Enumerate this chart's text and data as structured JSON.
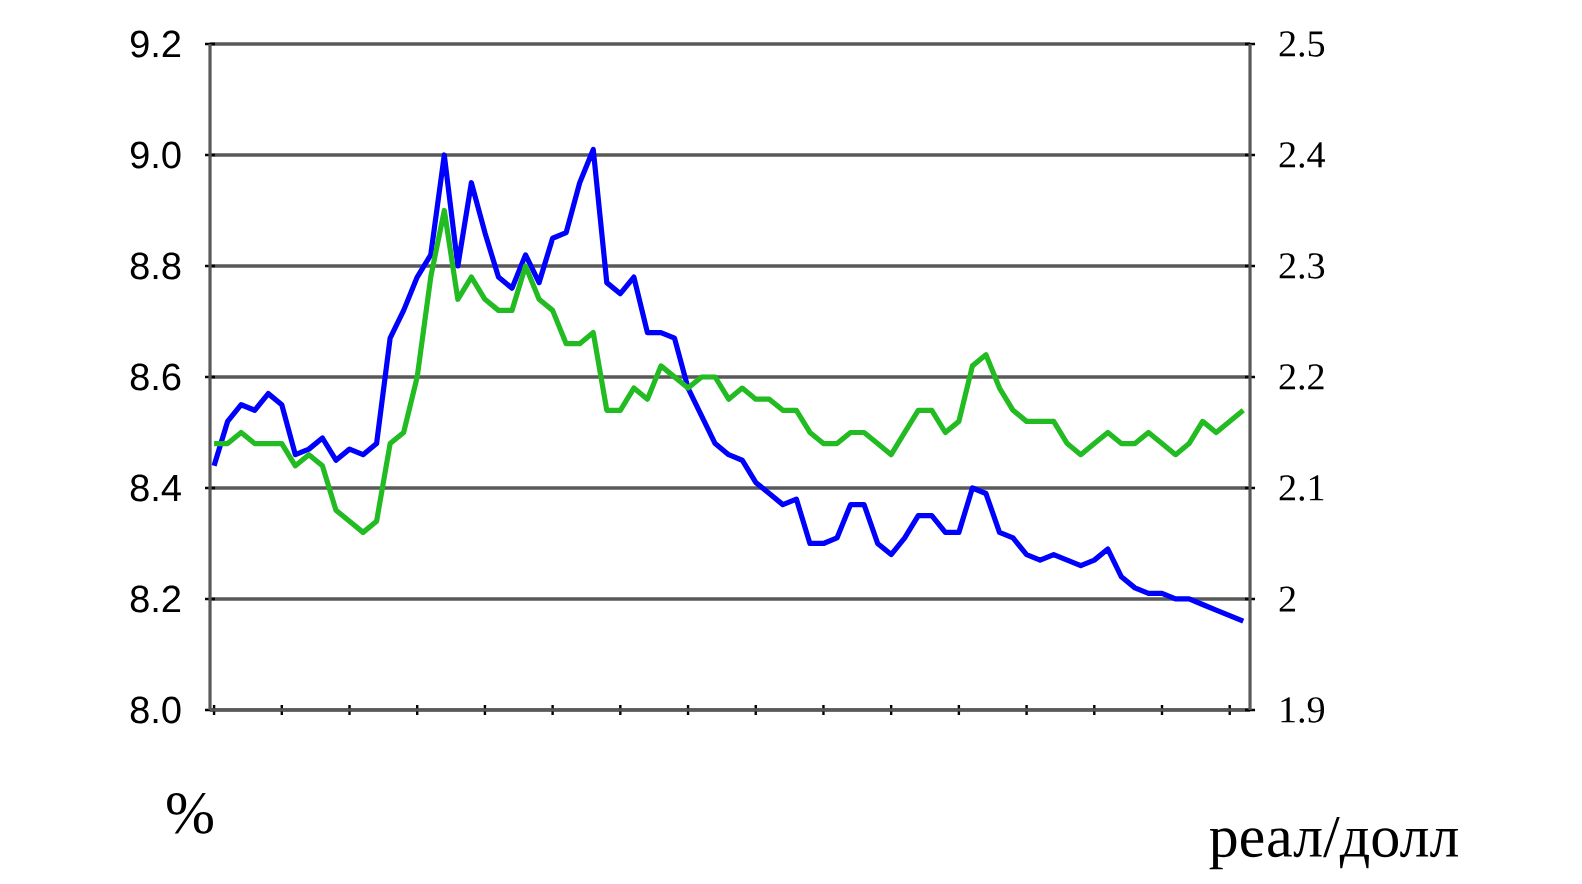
{
  "chart_data": {
    "type": "line",
    "ylabel": "%",
    "y2label": "реал/долл",
    "categories": [
      null,
      null,
      null,
      null,
      null,
      null,
      null,
      null,
      null,
      null,
      null,
      null,
      null,
      null,
      null,
      null,
      null,
      null,
      null,
      null,
      null,
      null,
      null,
      null,
      null,
      null,
      null,
      null,
      null,
      null,
      null,
      null,
      null,
      null,
      null,
      null,
      null,
      null,
      null,
      null,
      null,
      null,
      null,
      null,
      null,
      null,
      null,
      null,
      null,
      null,
      null,
      null,
      null,
      null,
      null,
      null,
      null,
      null,
      null,
      null,
      null,
      null,
      null,
      null,
      null,
      null,
      null,
      null,
      null,
      null,
      null,
      null,
      null,
      null,
      null,
      null,
      null
    ],
    "ylim": [
      8.0,
      9.2
    ],
    "yticks": [
      {
        "value": 8.0,
        "label": "8.0"
      },
      8.2,
      8.4,
      8.6,
      8.8,
      {
        "value": 9.0,
        "label": "9.0"
      },
      9.2
    ],
    "y2lim": [
      1.9,
      2.5
    ],
    "y2ticks": [
      1.9,
      2,
      2.1,
      2.2,
      2.3,
      2.4,
      2.5
    ],
    "grid": "y",
    "series": [
      {
        "color": "#0000ff",
        "values": [
          8.44,
          8.52,
          8.55,
          8.54,
          8.57,
          8.55,
          8.46,
          8.47,
          8.49,
          8.45,
          8.47,
          8.46,
          8.48,
          8.67,
          8.72,
          8.78,
          8.82,
          9.0,
          8.8,
          8.95,
          8.86,
          8.78,
          8.76,
          8.82,
          8.77,
          8.85,
          8.86,
          8.95,
          9.01,
          8.77,
          8.75,
          8.78,
          8.68,
          8.68,
          8.67,
          8.58,
          8.53,
          8.48,
          8.46,
          8.45,
          8.41,
          8.39,
          8.37,
          8.38,
          8.3,
          8.3,
          8.31,
          8.37,
          8.37,
          8.3,
          8.28,
          8.31,
          8.35,
          8.35,
          8.32,
          8.32,
          8.4,
          8.39,
          8.32,
          8.31,
          8.28,
          8.27,
          8.28,
          8.27,
          8.26,
          8.27,
          8.29,
          8.24,
          8.22,
          8.21,
          8.21,
          8.2,
          8.2,
          8.19,
          8.18,
          8.17,
          8.16
        ]
      },
      {
        "color": "#22bb22",
        "axis": "y2",
        "values": [
          2.14,
          2.14,
          2.15,
          2.14,
          2.14,
          2.14,
          2.12,
          2.13,
          2.12,
          2.08,
          2.07,
          2.06,
          2.07,
          2.14,
          2.15,
          2.2,
          2.29,
          2.35,
          2.27,
          2.29,
          2.27,
          2.26,
          2.26,
          2.3,
          2.27,
          2.26,
          2.23,
          2.23,
          2.24,
          2.17,
          2.17,
          2.19,
          2.18,
          2.21,
          2.2,
          2.19,
          2.2,
          2.2,
          2.18,
          2.19,
          2.18,
          2.18,
          2.17,
          2.17,
          2.15,
          2.14,
          2.14,
          2.15,
          2.15,
          2.14,
          2.13,
          2.15,
          2.17,
          2.17,
          2.15,
          2.16,
          2.21,
          2.22,
          2.19,
          2.17,
          2.16,
          2.16,
          2.16,
          2.14,
          2.13,
          2.14,
          2.15,
          2.14,
          2.14,
          2.15,
          2.14,
          2.13,
          2.14,
          2.16,
          2.15,
          2.16,
          2.17
        ]
      }
    ]
  }
}
